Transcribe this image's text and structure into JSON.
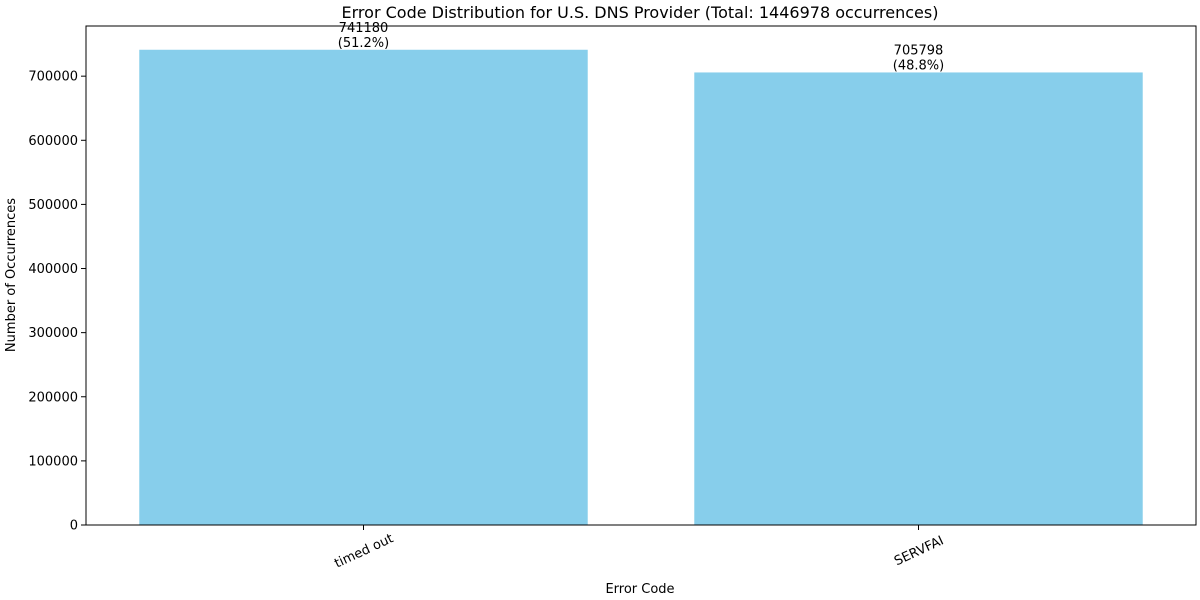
{
  "chart_data": {
    "type": "bar",
    "title": "Error Code Distribution for U.S. DNS Provider (Total: 1446978 occurrences)",
    "xlabel": "Error Code",
    "ylabel": "Number of Occurrences",
    "categories": [
      "timed out",
      "SERVFAI"
    ],
    "values": [
      741180,
      705798
    ],
    "value_labels": [
      "741180",
      "705798"
    ],
    "percent_labels": [
      "(51.2%)",
      "(48.8%)"
    ],
    "ylim": [
      0,
      778239
    ],
    "yticks": [
      0,
      100000,
      200000,
      300000,
      400000,
      500000,
      600000,
      700000
    ],
    "ytick_labels": [
      "0",
      "100000",
      "200000",
      "300000",
      "400000",
      "500000",
      "600000",
      "700000"
    ],
    "xtick_rotation": 25,
    "grid": false,
    "legend": "none",
    "bar_color": "#87ceeb"
  }
}
